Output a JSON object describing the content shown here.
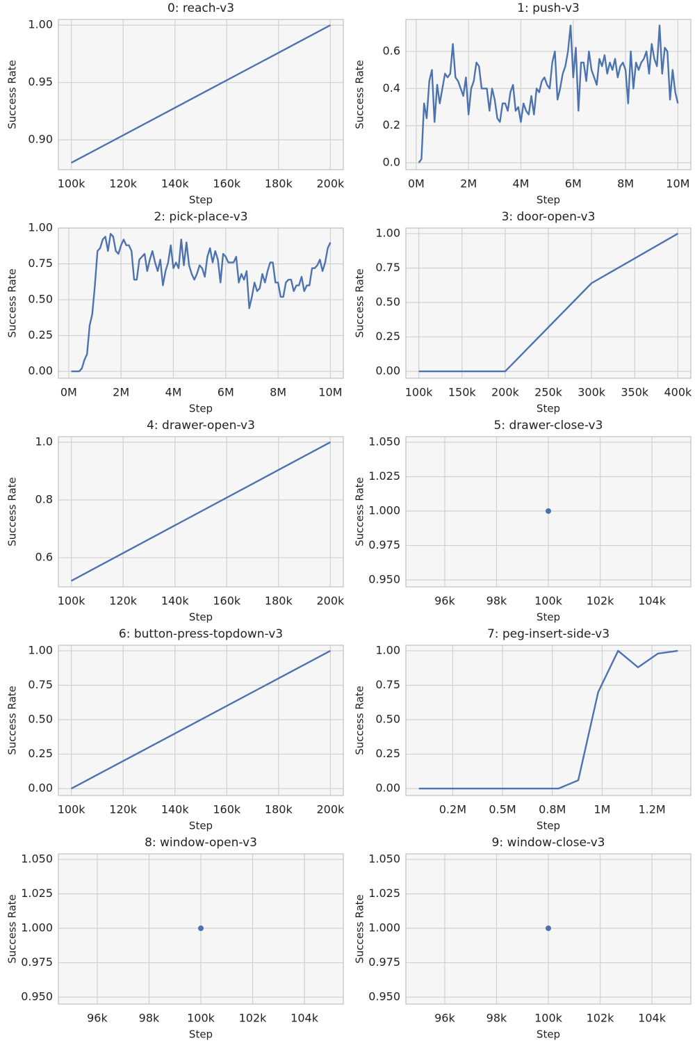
{
  "chart_data": [
    {
      "type": "line",
      "title": "0: reach-v3",
      "xlabel": "Step",
      "ylabel": "Success Rate",
      "color": "#4c72b0",
      "grid": true,
      "x": [
        100000,
        200000
      ],
      "values": [
        0.88,
        1.0
      ],
      "xlim": [
        95000,
        205000
      ],
      "ylim": [
        0.874,
        1.005
      ],
      "xticks": [
        {
          "value": 100000,
          "label": "100k"
        },
        {
          "value": 120000,
          "label": "120k"
        },
        {
          "value": 140000,
          "label": "140k"
        },
        {
          "value": 160000,
          "label": "160k"
        },
        {
          "value": 180000,
          "label": "180k"
        },
        {
          "value": 200000,
          "label": "200k"
        }
      ],
      "yticks": [
        {
          "value": 0.9,
          "label": "0.90"
        },
        {
          "value": 0.95,
          "label": "0.95"
        },
        {
          "value": 1.0,
          "label": "1.00"
        }
      ]
    },
    {
      "type": "line",
      "title": "1: push-v3",
      "xlabel": "Step",
      "ylabel": "Success Rate",
      "color": "#4c72b0",
      "grid": true,
      "x": [
        100000,
        200000,
        300000,
        400000,
        500000,
        600000,
        700000,
        800000,
        900000,
        1000000,
        1100000,
        1200000,
        1300000,
        1400000,
        1500000,
        1600000,
        1700000,
        1800000,
        1900000,
        2000000,
        2100000,
        2200000,
        2300000,
        2400000,
        2500000,
        2600000,
        2700000,
        2800000,
        2900000,
        3000000,
        3100000,
        3200000,
        3300000,
        3400000,
        3500000,
        3600000,
        3700000,
        3800000,
        3900000,
        4000000,
        4100000,
        4200000,
        4300000,
        4400000,
        4500000,
        4600000,
        4700000,
        4800000,
        4900000,
        5000000,
        5100000,
        5200000,
        5300000,
        5400000,
        5500000,
        5600000,
        5700000,
        5800000,
        5900000,
        6000000,
        6100000,
        6200000,
        6300000,
        6400000,
        6500000,
        6600000,
        6700000,
        6800000,
        6900000,
        7000000,
        7100000,
        7200000,
        7300000,
        7400000,
        7500000,
        7600000,
        7700000,
        7800000,
        7900000,
        8000000,
        8100000,
        8200000,
        8300000,
        8400000,
        8500000,
        8600000,
        8700000,
        8800000,
        8900000,
        9000000,
        9100000,
        9200000,
        9300000,
        9400000,
        9500000,
        9600000,
        9700000,
        9800000,
        9900000,
        10000000
      ],
      "values": [
        0.0,
        0.02,
        0.32,
        0.24,
        0.44,
        0.5,
        0.22,
        0.42,
        0.32,
        0.4,
        0.48,
        0.46,
        0.48,
        0.64,
        0.46,
        0.44,
        0.4,
        0.36,
        0.46,
        0.26,
        0.4,
        0.44,
        0.54,
        0.52,
        0.4,
        0.4,
        0.4,
        0.28,
        0.4,
        0.34,
        0.24,
        0.22,
        0.32,
        0.32,
        0.28,
        0.38,
        0.42,
        0.28,
        0.3,
        0.22,
        0.32,
        0.28,
        0.26,
        0.36,
        0.26,
        0.4,
        0.38,
        0.44,
        0.46,
        0.42,
        0.4,
        0.54,
        0.6,
        0.34,
        0.4,
        0.48,
        0.52,
        0.6,
        0.74,
        0.46,
        0.62,
        0.28,
        0.54,
        0.54,
        0.44,
        0.6,
        0.5,
        0.46,
        0.42,
        0.56,
        0.52,
        0.58,
        0.48,
        0.54,
        0.5,
        0.56,
        0.46,
        0.52,
        0.54,
        0.5,
        0.32,
        0.6,
        0.4,
        0.54,
        0.5,
        0.54,
        0.56,
        0.6,
        0.48,
        0.64,
        0.56,
        0.52,
        0.74,
        0.48,
        0.62,
        0.6,
        0.34,
        0.5,
        0.38,
        0.32
      ],
      "xlim": [
        -395000,
        10495000
      ],
      "ylim": [
        -0.037,
        0.772
      ],
      "xticks": [
        {
          "value": 0,
          "label": "0M"
        },
        {
          "value": 2000000,
          "label": "2M"
        },
        {
          "value": 4000000,
          "label": "4M"
        },
        {
          "value": 6000000,
          "label": "6M"
        },
        {
          "value": 8000000,
          "label": "8M"
        },
        {
          "value": 10000000,
          "label": "10M"
        }
      ],
      "yticks": [
        {
          "value": 0,
          "label": "0.0"
        },
        0.2,
        0.4,
        0.6
      ]
    },
    {
      "type": "line",
      "title": "2: pick-place-v3",
      "xlabel": "Step",
      "ylabel": "Success Rate",
      "color": "#4c72b0",
      "grid": true,
      "x": [
        100000,
        200000,
        300000,
        400000,
        500000,
        600000,
        700000,
        800000,
        900000,
        1000000,
        1100000,
        1200000,
        1300000,
        1400000,
        1500000,
        1600000,
        1700000,
        1800000,
        1900000,
        2000000,
        2100000,
        2200000,
        2300000,
        2400000,
        2500000,
        2600000,
        2700000,
        2800000,
        2900000,
        3000000,
        3100000,
        3200000,
        3300000,
        3400000,
        3500000,
        3600000,
        3700000,
        3800000,
        3900000,
        4000000,
        4100000,
        4200000,
        4300000,
        4400000,
        4500000,
        4600000,
        4700000,
        4800000,
        4900000,
        5000000,
        5100000,
        5200000,
        5300000,
        5400000,
        5500000,
        5600000,
        5700000,
        5800000,
        5900000,
        6000000,
        6100000,
        6200000,
        6300000,
        6400000,
        6500000,
        6600000,
        6700000,
        6800000,
        6900000,
        7000000,
        7100000,
        7200000,
        7300000,
        7400000,
        7500000,
        7600000,
        7700000,
        7800000,
        7900000,
        8000000,
        8100000,
        8200000,
        8300000,
        8400000,
        8500000,
        8600000,
        8700000,
        8800000,
        8900000,
        9000000,
        9100000,
        9200000,
        9300000,
        9400000,
        9500000,
        9600000,
        9700000,
        9800000,
        9900000,
        10000000
      ],
      "values": [
        0,
        0,
        0,
        0,
        0.02,
        0.08,
        0.12,
        0.32,
        0.4,
        0.6,
        0.84,
        0.86,
        0.92,
        0.94,
        0.84,
        0.96,
        0.94,
        0.84,
        0.82,
        0.88,
        0.92,
        0.88,
        0.88,
        0.84,
        0.64,
        0.64,
        0.78,
        0.8,
        0.82,
        0.7,
        0.78,
        0.84,
        0.76,
        0.7,
        0.78,
        0.6,
        0.7,
        0.76,
        0.88,
        0.72,
        0.76,
        0.72,
        0.92,
        0.74,
        0.9,
        0.74,
        0.68,
        0.64,
        0.68,
        0.74,
        0.72,
        0.66,
        0.8,
        0.86,
        0.76,
        0.84,
        0.78,
        0.62,
        0.82,
        0.8,
        0.76,
        0.76,
        0.76,
        0.8,
        0.62,
        0.68,
        0.64,
        0.7,
        0.44,
        0.52,
        0.62,
        0.56,
        0.58,
        0.68,
        0.62,
        0.7,
        0.76,
        0.76,
        0.62,
        0.62,
        0.52,
        0.52,
        0.62,
        0.64,
        0.64,
        0.56,
        0.6,
        0.6,
        0.66,
        0.56,
        0.6,
        0.6,
        0.72,
        0.72,
        0.74,
        0.78,
        0.7,
        0.76,
        0.86,
        0.9
      ],
      "xlim": [
        -395000,
        10495000
      ],
      "ylim": [
        -0.048,
        1.0
      ],
      "xticks": [
        {
          "value": 0,
          "label": "0M"
        },
        {
          "value": 2000000,
          "label": "2M"
        },
        {
          "value": 4000000,
          "label": "4M"
        },
        {
          "value": 6000000,
          "label": "6M"
        },
        {
          "value": 8000000,
          "label": "8M"
        },
        {
          "value": 10000000,
          "label": "10M"
        }
      ],
      "yticks": [
        {
          "value": 0,
          "label": "0.00"
        },
        0.25,
        {
          "value": 0.5,
          "label": "0.50"
        },
        0.75,
        {
          "value": 1.0,
          "label": "1.00"
        }
      ]
    },
    {
      "type": "line",
      "title": "3: door-open-v3",
      "xlabel": "Step",
      "ylabel": "Success Rate",
      "color": "#4c72b0",
      "grid": true,
      "x": [
        100000,
        200000,
        300000,
        400000
      ],
      "values": [
        0,
        0,
        0.64,
        1.0
      ],
      "xlim": [
        85000,
        415000
      ],
      "ylim": [
        -0.05,
        1.04
      ],
      "xticks": [
        {
          "value": 100000,
          "label": "100k"
        },
        {
          "value": 150000,
          "label": "150k"
        },
        {
          "value": 200000,
          "label": "200k"
        },
        {
          "value": 250000,
          "label": "250k"
        },
        {
          "value": 300000,
          "label": "300k"
        },
        {
          "value": 350000,
          "label": "350k"
        },
        {
          "value": 400000,
          "label": "400k"
        }
      ],
      "yticks": [
        {
          "value": 0,
          "label": "0.00"
        },
        0.25,
        {
          "value": 0.5,
          "label": "0.50"
        },
        0.75,
        {
          "value": 1.0,
          "label": "1.00"
        }
      ]
    },
    {
      "type": "line",
      "title": "4: drawer-open-v3",
      "xlabel": "Step",
      "ylabel": "Success Rate",
      "color": "#4c72b0",
      "grid": true,
      "x": [
        100000,
        200000
      ],
      "values": [
        0.52,
        1.0
      ],
      "xlim": [
        95000,
        205000
      ],
      "ylim": [
        0.499,
        1.019
      ],
      "xticks": [
        {
          "value": 100000,
          "label": "100k"
        },
        {
          "value": 120000,
          "label": "120k"
        },
        {
          "value": 140000,
          "label": "140k"
        },
        {
          "value": 160000,
          "label": "160k"
        },
        {
          "value": 180000,
          "label": "180k"
        },
        {
          "value": 200000,
          "label": "200k"
        }
      ],
      "yticks": [
        0.6,
        0.8,
        {
          "value": 1.0,
          "label": "1.0"
        }
      ]
    },
    {
      "type": "scatter",
      "title": "5: drawer-close-v3",
      "xlabel": "Step",
      "ylabel": "Success Rate",
      "color": "#4c72b0",
      "grid": true,
      "x": [
        100000
      ],
      "values": [
        1.0
      ],
      "xlim": [
        94500,
        105500
      ],
      "ylim": [
        0.945,
        1.054
      ],
      "xticks": [
        {
          "value": 96000,
          "label": "96k"
        },
        {
          "value": 98000,
          "label": "98k"
        },
        {
          "value": 100000,
          "label": "100k"
        },
        {
          "value": 102000,
          "label": "102k"
        },
        {
          "value": 104000,
          "label": "104k"
        }
      ],
      "yticks": [
        {
          "value": 0.95,
          "label": "0.950"
        },
        0.975,
        {
          "value": 1.0,
          "label": "1.000"
        },
        1.025,
        {
          "value": 1.05,
          "label": "1.050"
        }
      ]
    },
    {
      "type": "line",
      "title": "6: button-press-topdown-v3",
      "xlabel": "Step",
      "ylabel": "Success Rate",
      "color": "#4c72b0",
      "grid": true,
      "x": [
        100000,
        200000
      ],
      "values": [
        0,
        1.0
      ],
      "xlim": [
        95000,
        205000
      ],
      "ylim": [
        -0.05,
        1.04
      ],
      "xticks": [
        {
          "value": 100000,
          "label": "100k"
        },
        {
          "value": 120000,
          "label": "120k"
        },
        {
          "value": 140000,
          "label": "140k"
        },
        {
          "value": 160000,
          "label": "160k"
        },
        {
          "value": 180000,
          "label": "180k"
        },
        {
          "value": 200000,
          "label": "200k"
        }
      ],
      "yticks": [
        {
          "value": 0,
          "label": "0.00"
        },
        0.25,
        {
          "value": 0.5,
          "label": "0.50"
        },
        0.75,
        {
          "value": 1.0,
          "label": "1.00"
        }
      ]
    },
    {
      "type": "line",
      "title": "7: peg-insert-side-v3",
      "xlabel": "Step",
      "ylabel": "Success Rate",
      "color": "#4c72b0",
      "grid": true,
      "x": [
        80000,
        180000,
        280000,
        380000,
        480000,
        580000,
        680000,
        780000,
        880000,
        980000,
        1080000,
        1180000,
        1280000,
        1380000
      ],
      "values": [
        0,
        0,
        0,
        0,
        0,
        0,
        0,
        0,
        0.06,
        0.7,
        1.0,
        0.88,
        0.98,
        1.0
      ],
      "xlim": [
        15000,
        1445000
      ],
      "ylim": [
        -0.05,
        1.04
      ],
      "xticks": [
        {
          "value": 250000,
          "label": "0.2M"
        },
        {
          "value": 500000,
          "label": "0.5M"
        },
        {
          "value": 750000,
          "label": "0.8M"
        },
        {
          "value": 1000000,
          "label": "1M"
        },
        {
          "value": 1250000,
          "label": "1.2M"
        }
      ],
      "yticks": [
        {
          "value": 0,
          "label": "0.00"
        },
        0.25,
        {
          "value": 0.5,
          "label": "0.50"
        },
        0.75,
        {
          "value": 1.0,
          "label": "1.00"
        }
      ]
    },
    {
      "type": "scatter",
      "title": "8: window-open-v3",
      "xlabel": "Step",
      "ylabel": "Success Rate",
      "color": "#4c72b0",
      "grid": true,
      "x": [
        100000
      ],
      "values": [
        1.0
      ],
      "xlim": [
        94500,
        105500
      ],
      "ylim": [
        0.945,
        1.054
      ],
      "xticks": [
        {
          "value": 96000,
          "label": "96k"
        },
        {
          "value": 98000,
          "label": "98k"
        },
        {
          "value": 100000,
          "label": "100k"
        },
        {
          "value": 102000,
          "label": "102k"
        },
        {
          "value": 104000,
          "label": "104k"
        }
      ],
      "yticks": [
        {
          "value": 0.95,
          "label": "0.950"
        },
        0.975,
        {
          "value": 1.0,
          "label": "1.000"
        },
        1.025,
        {
          "value": 1.05,
          "label": "1.050"
        }
      ]
    },
    {
      "type": "scatter",
      "title": "9: window-close-v3",
      "xlabel": "Step",
      "ylabel": "Success Rate",
      "color": "#4c72b0",
      "grid": true,
      "x": [
        100000
      ],
      "values": [
        1.0
      ],
      "xlim": [
        94500,
        105500
      ],
      "ylim": [
        0.945,
        1.054
      ],
      "xticks": [
        {
          "value": 96000,
          "label": "96k"
        },
        {
          "value": 98000,
          "label": "98k"
        },
        {
          "value": 100000,
          "label": "100k"
        },
        {
          "value": 102000,
          "label": "102k"
        },
        {
          "value": 104000,
          "label": "104k"
        }
      ],
      "yticks": [
        {
          "value": 0.95,
          "label": "0.950"
        },
        0.975,
        {
          "value": 1.0,
          "label": "1.000"
        },
        1.025,
        {
          "value": 1.05,
          "label": "1.050"
        }
      ]
    }
  ]
}
